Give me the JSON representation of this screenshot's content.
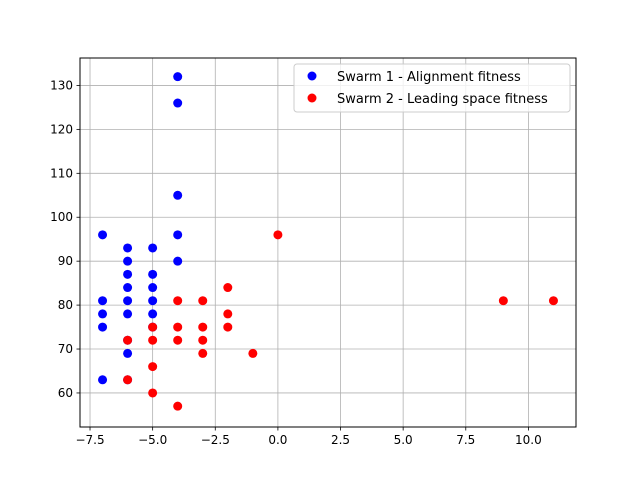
{
  "chart_data": {
    "type": "scatter",
    "xlim": [
      -7.9,
      11.9
    ],
    "ylim": [
      52.25,
      136.25
    ],
    "x_ticks": [
      -7.5,
      -5.0,
      -2.5,
      0.0,
      2.5,
      5.0,
      7.5,
      10.0
    ],
    "y_ticks": [
      60,
      70,
      80,
      90,
      100,
      110,
      120,
      130
    ],
    "grid": true,
    "legend_position": "top-right",
    "series": [
      {
        "name": "Swarm 1 - Alignment fitness",
        "color": "#0000ff",
        "points": [
          [
            -7,
            96
          ],
          [
            -7,
            81
          ],
          [
            -7,
            78
          ],
          [
            -7,
            75
          ],
          [
            -7,
            63
          ],
          [
            -6,
            93
          ],
          [
            -6,
            90
          ],
          [
            -6,
            87
          ],
          [
            -6,
            84
          ],
          [
            -6,
            81
          ],
          [
            -6,
            78
          ],
          [
            -6,
            72
          ],
          [
            -6,
            69
          ],
          [
            -6,
            63
          ],
          [
            -5,
            93
          ],
          [
            -5,
            87
          ],
          [
            -5,
            84
          ],
          [
            -5,
            81
          ],
          [
            -5,
            78
          ],
          [
            -5,
            75
          ],
          [
            -4,
            132
          ],
          [
            -4,
            126
          ],
          [
            -4,
            105
          ],
          [
            -4,
            96
          ],
          [
            -4,
            90
          ]
        ]
      },
      {
        "name": "Swarm 2 - Leading space fitness",
        "color": "#ff0000",
        "points": [
          [
            -6,
            72
          ],
          [
            -6,
            63
          ],
          [
            -5,
            75
          ],
          [
            -5,
            72
          ],
          [
            -5,
            66
          ],
          [
            -5,
            60
          ],
          [
            -4,
            81
          ],
          [
            -4,
            75
          ],
          [
            -4,
            72
          ],
          [
            -4,
            57
          ],
          [
            -3,
            81
          ],
          [
            -3,
            75
          ],
          [
            -3,
            72
          ],
          [
            -3,
            69
          ],
          [
            -2,
            84
          ],
          [
            -2,
            78
          ],
          [
            -2,
            75
          ],
          [
            -1,
            69
          ],
          [
            0,
            96
          ],
          [
            9,
            81
          ],
          [
            11,
            81
          ]
        ]
      }
    ]
  }
}
